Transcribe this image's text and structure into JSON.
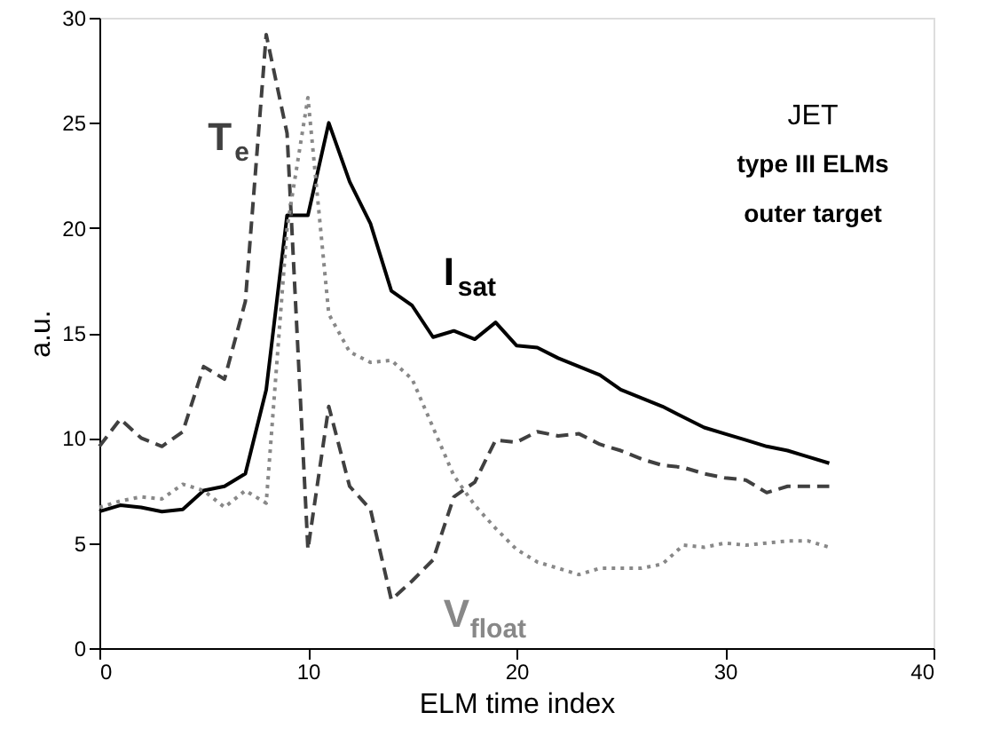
{
  "chart_data": {
    "type": "line",
    "xlabel": "ELM time index",
    "ylabel": "a.u.",
    "x": [
      0,
      1,
      2,
      3,
      4,
      5,
      6,
      7,
      8,
      9,
      10,
      11,
      12,
      13,
      14,
      15,
      16,
      17,
      18,
      19,
      20,
      21,
      22,
      23,
      24,
      25,
      26,
      27,
      28,
      29,
      30,
      31,
      32,
      33,
      34,
      35
    ],
    "xlim": [
      0,
      40
    ],
    "xticks": [
      0,
      10,
      20,
      30,
      40
    ],
    "ylim": [
      0,
      30
    ],
    "yticks": [
      0,
      5,
      10,
      15,
      20,
      25,
      30
    ],
    "grid": false,
    "marker": "none",
    "series": [
      {
        "name": "I$_{sat}$",
        "color": "#000000",
        "line_style": "solid",
        "values": [
          6.5,
          6.8,
          6.7,
          6.5,
          6.6,
          7.5,
          7.7,
          8.3,
          12.3,
          20.6,
          20.6,
          25,
          22.2,
          20.2,
          17,
          16.3,
          14.8,
          15.1,
          14.7,
          15.5,
          14.4,
          14.3,
          13.8,
          13.4,
          13,
          12.3,
          11.9,
          11.5,
          11,
          10.5,
          10.2,
          9.9,
          9.6,
          9.4,
          9.1,
          8.8
        ]
      },
      {
        "name": "T$_{e}$",
        "color": "#404040",
        "line_style": "dashed",
        "values": [
          9.6,
          10.9,
          10.0,
          9.6,
          10.3,
          13.4,
          12.8,
          16.5,
          29.2,
          24.5,
          4.7,
          11.5,
          7.7,
          6.6,
          2.3,
          3.2,
          4.2,
          7.2,
          7.9,
          9.9,
          9.8,
          10.3,
          10.1,
          10.2,
          9.7,
          9.4,
          9.0,
          8.7,
          8.6,
          8.3,
          8.1,
          8.0,
          7.4,
          7.7,
          7.7,
          7.7
        ]
      },
      {
        "name": "V$_{float}$",
        "color": "#888888",
        "line_style": "dotted",
        "values": [
          6.7,
          7.0,
          7.2,
          7.1,
          7.8,
          7.5,
          6.7,
          7.5,
          6.9,
          20,
          26.2,
          15.9,
          14.1,
          13.6,
          13.7,
          12.8,
          10.5,
          8.2,
          6.8,
          5.7,
          4.7,
          4.1,
          3.8,
          3.5,
          3.8,
          3.8,
          3.8,
          4.0,
          4.9,
          4.8,
          5.0,
          4.9,
          5.0,
          5.1,
          5.1,
          4.8
        ]
      }
    ],
    "annotations": [
      "JET",
      "type III ELMs",
      "outer target"
    ]
  }
}
